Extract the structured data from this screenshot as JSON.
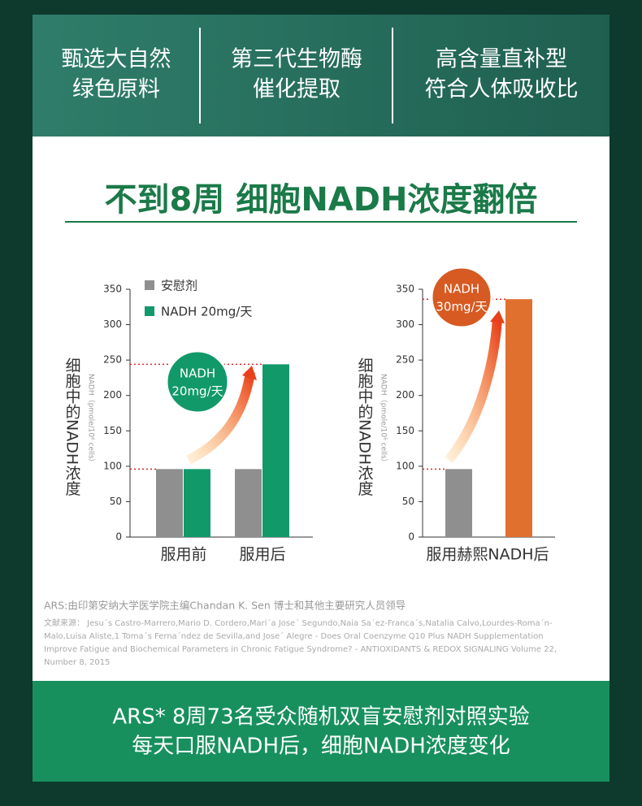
{
  "header": {
    "items": [
      [
        "甄选大自然",
        "绿色原料"
      ],
      [
        "第三代生物酶",
        "催化提取"
      ],
      [
        "高含量直补型",
        "符合人体吸收比"
      ]
    ]
  },
  "headline": "不到8周 细胞NADH浓度翻倍",
  "chart_data": [
    {
      "type": "bar",
      "y_label": "细胞中的NADH浓度",
      "y_unit": "NADH（pmole/10⁶ cells）",
      "categories": [
        "服用前",
        "服用后"
      ],
      "series": [
        {
          "name": "安慰剂",
          "color": "#8f8f8f",
          "values": [
            96,
            96
          ]
        },
        {
          "name": "NADH 20mg/天",
          "color": "#12996a",
          "values": [
            96,
            244
          ]
        }
      ],
      "ylim": [
        0,
        350
      ],
      "yticks": [
        0,
        50,
        100,
        150,
        200,
        250,
        300,
        350
      ],
      "annotation": [
        "NADH",
        "20mg/天"
      ]
    },
    {
      "type": "bar",
      "y_label": "细胞中的NADH浓度",
      "y_unit": "NADH（pmole/10⁶ cells）",
      "categories": [
        "服用赫熙NADH后"
      ],
      "series": [
        {
          "color": "#8f8f8f",
          "values": [
            96
          ]
        },
        {
          "color": "#e0702e",
          "values": [
            336
          ]
        }
      ],
      "ylim": [
        0,
        350
      ],
      "yticks": [
        0,
        50,
        100,
        150,
        200,
        250,
        300,
        350
      ],
      "annotation": [
        "NADH",
        "30mg/天"
      ]
    }
  ],
  "references": {
    "lead": "ARS:由印第安纳大学医学院主编Chandan K. Sen 博士和其他主要研究人员领导",
    "lines": [
      "文献来源： Jesu´s Castro-Marrero,Mario D. Cordero,Mari´a Jose´ Segundo,Naia Sa´ez-Franca´s,Natalia Calvo,Lourdes-Roma´n-",
      "Malo,Luisa Aliste,1 Toma´s Ferna´ndez de Sevilla,and Jose´ Alegre - Does Oral Coenzyme Q10 Plus NADH Supplementation",
      "Improve Fatigue and Biochemical Parameters in Chronic Fatigue Syndrome? - ANTIOXIDANTS & REDOX SIGNALING Volume 22,",
      "Number 8, 2015"
    ]
  },
  "footer": {
    "lines": [
      "ARS* 8周73名受众随机双盲安慰剂对照实验",
      "每天口服NADH后，细胞NADH浓度变化"
    ]
  }
}
